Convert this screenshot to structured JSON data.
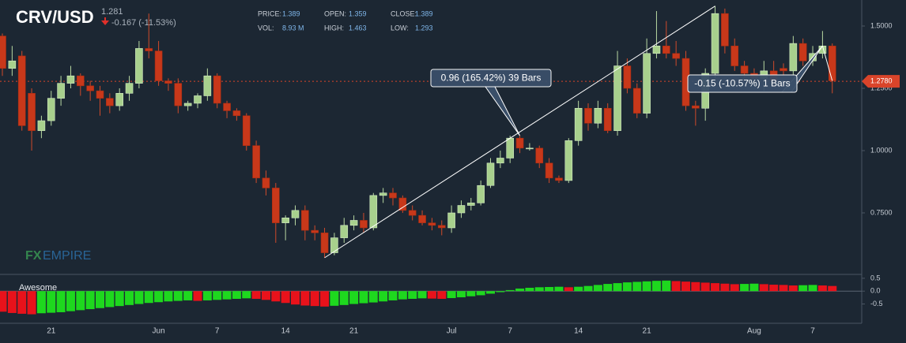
{
  "chart_data": {
    "type": "candlestick",
    "title": "CRV/USD",
    "last": "1.281",
    "change": "-0.167 (-11.53%)",
    "stats": [
      {
        "label": "PRICE:",
        "value": "1.389"
      },
      {
        "label": "OPEN:",
        "value": "1.359"
      },
      {
        "label": "CLOSE:",
        "value": "1.389"
      },
      {
        "label": "VOL:",
        "value": "8.93 M"
      },
      {
        "label": "HIGH:",
        "value": "1.463"
      },
      {
        "label": "LOW:",
        "value": "1.293"
      }
    ],
    "watermark": [
      "FX",
      "EMPIRE"
    ],
    "categories": [
      null,
      null,
      null,
      null,
      null,
      "21",
      null,
      null,
      null,
      null,
      null,
      null,
      null,
      null,
      null,
      null,
      "Jun",
      null,
      null,
      null,
      null,
      null,
      "7",
      null,
      null,
      null,
      null,
      null,
      null,
      "14",
      null,
      null,
      null,
      null,
      null,
      null,
      "21",
      null,
      null,
      null,
      null,
      null,
      null,
      null,
      null,
      null,
      "Jul",
      null,
      null,
      null,
      null,
      null,
      "7",
      null,
      null,
      null,
      null,
      null,
      null,
      "14",
      null,
      null,
      null,
      null,
      null,
      null,
      "21",
      null,
      null,
      null,
      null,
      null,
      null,
      null,
      null,
      null,
      null,
      "Aug",
      null,
      null,
      null,
      null,
      null,
      "7",
      null,
      null
    ],
    "open": [
      1.46,
      1.33,
      1.38,
      1.23,
      1.08,
      1.12,
      1.21,
      1.27,
      1.3,
      1.26,
      1.24,
      1.21,
      1.18,
      1.23,
      1.27,
      1.41,
      1.4,
      1.28,
      1.27,
      1.18,
      1.19,
      1.22,
      1.3,
      1.19,
      1.16,
      1.14,
      1.02,
      0.89,
      0.85,
      0.71,
      0.73,
      0.76,
      0.68,
      0.67,
      0.59,
      0.65,
      0.7,
      0.72,
      0.69,
      0.82,
      0.83,
      0.81,
      0.76,
      0.74,
      0.71,
      0.7,
      0.69,
      0.75,
      0.78,
      0.79,
      0.86,
      0.95,
      0.97,
      1.05,
      1.01,
      1.01,
      0.95,
      0.89,
      0.88,
      1.04,
      1.17,
      1.11,
      1.17,
      1.08,
      1.34,
      1.25,
      1.15,
      1.39,
      1.42,
      1.39,
      1.37,
      1.18,
      1.17,
      1.31,
      1.55,
      1.42,
      1.34,
      1.31,
      1.29,
      1.32,
      1.33,
      1.32,
      1.43,
      1.36,
      1.39,
      1.42
    ],
    "high": [
      1.47,
      1.42,
      1.4,
      1.25,
      1.14,
      1.24,
      1.3,
      1.34,
      1.31,
      1.28,
      1.26,
      1.23,
      1.25,
      1.3,
      1.44,
      1.55,
      1.44,
      1.29,
      1.29,
      1.2,
      1.23,
      1.33,
      1.31,
      1.2,
      1.17,
      1.15,
      1.04,
      0.92,
      0.87,
      0.74,
      0.78,
      0.78,
      0.7,
      0.69,
      0.67,
      0.73,
      0.74,
      0.75,
      0.83,
      0.85,
      0.85,
      0.82,
      0.78,
      0.76,
      0.73,
      0.72,
      0.78,
      0.8,
      0.81,
      0.88,
      0.97,
      1.0,
      1.06,
      1.06,
      1.03,
      1.02,
      0.97,
      0.9,
      1.05,
      1.2,
      1.19,
      1.2,
      1.19,
      1.4,
      1.37,
      1.27,
      1.45,
      1.56,
      1.52,
      1.44,
      1.4,
      1.2,
      1.33,
      1.58,
      1.57,
      1.45,
      1.36,
      1.33,
      1.36,
      1.36,
      1.35,
      1.46,
      1.45,
      1.42,
      1.48,
      1.43
    ],
    "low": [
      1.3,
      1.3,
      1.08,
      1.0,
      1.05,
      1.1,
      1.18,
      1.25,
      1.22,
      1.2,
      1.14,
      1.15,
      1.16,
      1.2,
      1.25,
      1.37,
      1.26,
      1.24,
      1.15,
      1.16,
      1.17,
      1.2,
      1.17,
      1.13,
      1.12,
      1.0,
      0.87,
      0.82,
      0.63,
      0.64,
      0.7,
      0.64,
      0.64,
      0.57,
      0.58,
      0.63,
      0.68,
      0.67,
      0.68,
      0.79,
      0.78,
      0.75,
      0.72,
      0.7,
      0.68,
      0.66,
      0.67,
      0.73,
      0.76,
      0.78,
      0.85,
      0.93,
      0.95,
      0.99,
      1.0,
      0.93,
      0.87,
      0.87,
      0.87,
      1.02,
      1.08,
      1.09,
      1.07,
      1.06,
      1.23,
      1.13,
      1.13,
      1.37,
      1.37,
      1.34,
      1.16,
      1.1,
      1.12,
      1.29,
      1.39,
      1.32,
      1.29,
      1.27,
      1.24,
      1.26,
      1.3,
      1.3,
      1.34,
      1.34,
      1.37,
      1.23
    ],
    "close": [
      1.33,
      1.36,
      1.1,
      1.08,
      1.12,
      1.21,
      1.27,
      1.3,
      1.26,
      1.24,
      1.21,
      1.18,
      1.23,
      1.27,
      1.41,
      1.4,
      1.28,
      1.27,
      1.18,
      1.19,
      1.22,
      1.3,
      1.19,
      1.16,
      1.14,
      1.02,
      0.89,
      0.85,
      0.71,
      0.73,
      0.76,
      0.68,
      0.67,
      0.59,
      0.65,
      0.7,
      0.72,
      0.69,
      0.82,
      0.83,
      0.81,
      0.76,
      0.74,
      0.71,
      0.7,
      0.69,
      0.75,
      0.78,
      0.79,
      0.86,
      0.95,
      0.97,
      1.05,
      1.01,
      1.01,
      0.95,
      0.89,
      0.88,
      1.04,
      1.17,
      1.11,
      1.17,
      1.08,
      1.34,
      1.25,
      1.15,
      1.39,
      1.42,
      1.39,
      1.37,
      1.18,
      1.17,
      1.31,
      1.55,
      1.42,
      1.34,
      1.31,
      1.29,
      1.32,
      1.28,
      1.32,
      1.43,
      1.36,
      1.39,
      1.42,
      1.28
    ],
    "up_color": "#a8d08d",
    "down_color": "#c8381a",
    "ylim": [
      0.5,
      1.6
    ],
    "yticks": [
      {
        "value": 0.75,
        "label": "0.7500"
      },
      {
        "value": 1.0,
        "label": "1.0000"
      },
      {
        "value": 1.25,
        "label": "1.2500"
      },
      {
        "value": 1.5,
        "label": "1.5000"
      }
    ],
    "price_line": {
      "value": 1.278,
      "label": "1.2780",
      "color": "#d9442a"
    },
    "annotations": [
      {
        "text": "0.96 (165.42%) 39 Bars"
      },
      {
        "text": "-0.15 (-10.57%) 1 Bars"
      }
    ],
    "indicator": {
      "name": "Awesome",
      "up_color": "#1ed81e",
      "down_color": "#e8121b",
      "ylim": [
        -1.25,
        0.65
      ],
      "yticks": [
        -0.5,
        {
          "value": 0.0,
          "label": "0.0"
        },
        0.5
      ],
      "values": [
        -0.8,
        -0.85,
        -0.88,
        -0.9,
        -0.86,
        -0.84,
        -0.82,
        -0.78,
        -0.74,
        -0.7,
        -0.66,
        -0.62,
        -0.58,
        -0.54,
        -0.5,
        -0.46,
        -0.43,
        -0.4,
        -0.38,
        -0.36,
        -0.38,
        -0.36,
        -0.34,
        -0.32,
        -0.3,
        -0.28,
        -0.3,
        -0.34,
        -0.4,
        -0.46,
        -0.52,
        -0.56,
        -0.58,
        -0.6,
        -0.57,
        -0.54,
        -0.5,
        -0.47,
        -0.44,
        -0.4,
        -0.36,
        -0.32,
        -0.3,
        -0.28,
        -0.29,
        -0.3,
        -0.27,
        -0.24,
        -0.2,
        -0.16,
        -0.1,
        -0.04,
        0.04,
        0.1,
        0.13,
        0.15,
        0.16,
        0.17,
        0.15,
        0.17,
        0.2,
        0.24,
        0.28,
        0.31,
        0.34,
        0.36,
        0.38,
        0.4,
        0.41,
        0.39,
        0.37,
        0.35,
        0.33,
        0.31,
        0.29,
        0.27,
        0.28,
        0.29,
        0.27,
        0.25,
        0.24,
        0.22,
        0.23,
        0.24,
        0.22,
        0.2
      ]
    }
  }
}
